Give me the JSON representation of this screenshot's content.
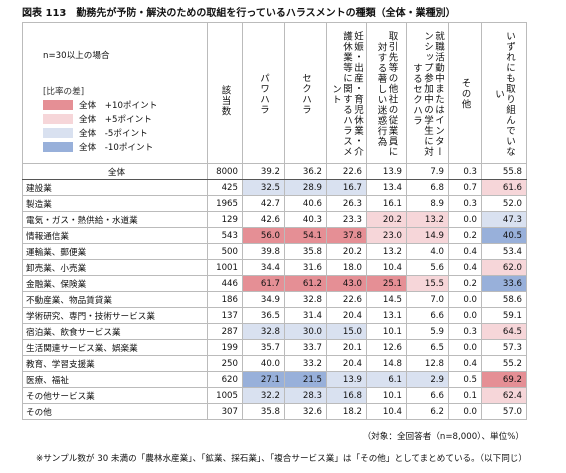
{
  "title": "図表 113　勤務先が予防・解決のための取組を行っているハラスメントの種類（全体・業種別）",
  "note_n": "n=30以上の場合",
  "legend": {
    "title": "[比率の差]",
    "items": [
      {
        "label": "全体　+10ポイント",
        "color": "#e58f95",
        "diff": 10
      },
      {
        "label": "全体　+5ポイント",
        "color": "#f6d6d9",
        "diff": 5
      },
      {
        "label": "全体　-5ポイント",
        "color": "#d9e1f0",
        "diff": -5
      },
      {
        "label": "全体　-10ポイント",
        "color": "#98b0da",
        "diff": -10
      }
    ]
  },
  "columns": [
    "該当数",
    "パワハラ",
    "セクハラ",
    "妊娠・出産・育児休業・介護休業等に関するハラスメント",
    "取引先等の他社の従業員に対する著しい迷惑行為",
    "就職活動中またはインターンシップ参加中の学生に対するセクハラ",
    "その他",
    "いずれにも取り組んでいない"
  ],
  "rows": [
    {
      "label": "全体",
      "cells": [
        "8000",
        "39.2",
        "36.2",
        "22.6",
        "13.9",
        "7.9",
        "0.3",
        "55.8"
      ]
    },
    {
      "label": "建設業",
      "cells": [
        "425",
        "32.5",
        "28.9",
        "16.7",
        "13.4",
        "6.8",
        "0.7",
        "61.6"
      ]
    },
    {
      "label": "製造業",
      "cells": [
        "1965",
        "42.7",
        "40.6",
        "26.3",
        "16.1",
        "8.9",
        "0.3",
        "52.0"
      ]
    },
    {
      "label": "電気・ガス・熱供給・水道業",
      "cells": [
        "129",
        "42.6",
        "40.3",
        "23.3",
        "20.2",
        "13.2",
        "0.0",
        "47.3"
      ]
    },
    {
      "label": "情報通信業",
      "cells": [
        "543",
        "56.0",
        "54.1",
        "37.8",
        "23.0",
        "14.9",
        "0.2",
        "40.5"
      ]
    },
    {
      "label": "運輸業、郵便業",
      "cells": [
        "500",
        "39.8",
        "35.8",
        "20.2",
        "13.2",
        "4.0",
        "0.4",
        "53.4"
      ]
    },
    {
      "label": "卸売業、小売業",
      "cells": [
        "1001",
        "34.4",
        "31.6",
        "18.0",
        "10.4",
        "5.6",
        "0.4",
        "62.0"
      ]
    },
    {
      "label": "金融業、保険業",
      "cells": [
        "446",
        "61.7",
        "61.2",
        "43.0",
        "25.1",
        "15.5",
        "0.2",
        "33.6"
      ]
    },
    {
      "label": "不動産業、物品賃貸業",
      "cells": [
        "186",
        "34.9",
        "32.8",
        "22.6",
        "14.5",
        "7.0",
        "0.0",
        "58.6"
      ]
    },
    {
      "label": "学術研究、専門・技術サービス業",
      "cells": [
        "137",
        "36.5",
        "31.4",
        "20.4",
        "13.1",
        "6.6",
        "0.0",
        "59.1"
      ]
    },
    {
      "label": "宿泊業、飲食サービス業",
      "cells": [
        "287",
        "32.8",
        "30.0",
        "15.0",
        "10.1",
        "5.9",
        "0.3",
        "64.5"
      ]
    },
    {
      "label": "生活関連サービス業、娯楽業",
      "cells": [
        "199",
        "35.7",
        "33.7",
        "20.1",
        "12.6",
        "6.5",
        "0.0",
        "57.3"
      ]
    },
    {
      "label": "教育、学習支援業",
      "cells": [
        "250",
        "40.0",
        "33.2",
        "20.4",
        "14.8",
        "12.8",
        "0.4",
        "55.2"
      ]
    },
    {
      "label": "医療、福祉",
      "cells": [
        "620",
        "27.1",
        "21.5",
        "13.9",
        "6.1",
        "2.9",
        "0.5",
        "69.2"
      ]
    },
    {
      "label": "その他サービス業",
      "cells": [
        "1005",
        "32.2",
        "28.3",
        "16.8",
        "10.1",
        "6.6",
        "0.1",
        "62.4"
      ]
    },
    {
      "label": "その他",
      "cells": [
        "307",
        "35.8",
        "32.6",
        "18.2",
        "10.4",
        "6.2",
        "0.0",
        "57.0"
      ]
    }
  ],
  "footer": [
    "（対象：全回答者（n=8,000）、単位%）",
    "※サンプル数が 30 未満の「農林水産業」、「鉱業、採石業」、「複合サービス業」は「その他」としてまとめている。（以下同じ）"
  ]
}
